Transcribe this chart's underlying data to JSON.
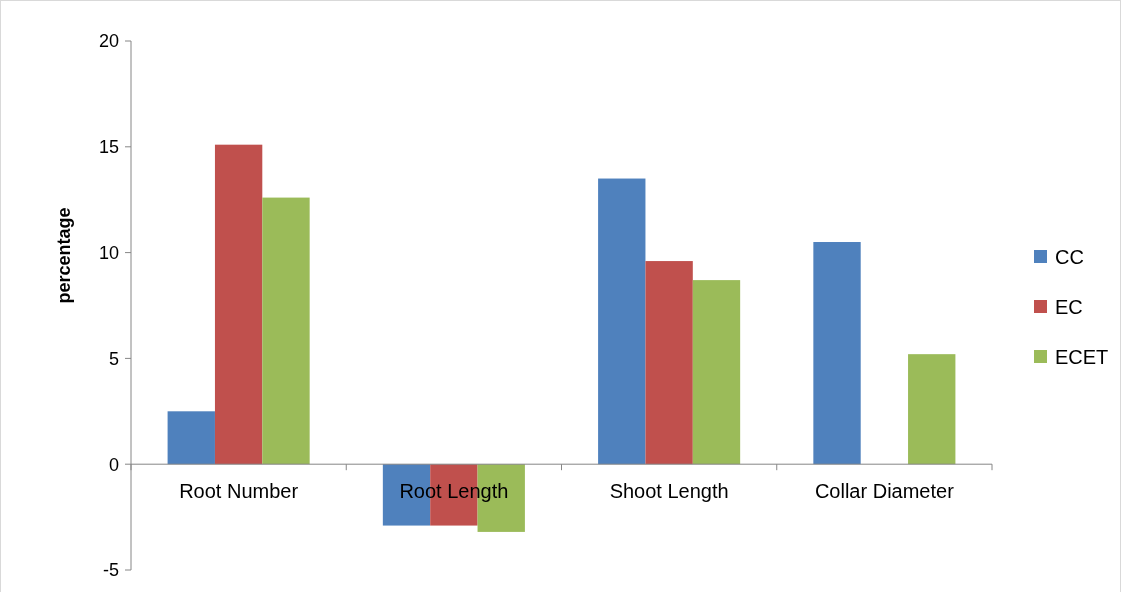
{
  "chart_data": {
    "type": "bar",
    "ylabel": "percentage",
    "categories": [
      "Root Number",
      "Root Length",
      "Shoot Length",
      "Collar Diameter"
    ],
    "series": [
      {
        "name": "CC",
        "color": "#4f81bd",
        "values": [
          2.5,
          -2.9,
          13.5,
          10.5
        ]
      },
      {
        "name": "EC",
        "color": "#c0504d",
        "values": [
          15.1,
          -2.9,
          9.6,
          null
        ]
      },
      {
        "name": "ECET",
        "color": "#9bbb59",
        "values": [
          12.6,
          -3.2,
          8.7,
          5.2
        ]
      }
    ],
    "ylim": [
      -5,
      20
    ],
    "yticks": [
      -5,
      0,
      5,
      10,
      15,
      20
    ],
    "grid": false,
    "legend": "right"
  }
}
